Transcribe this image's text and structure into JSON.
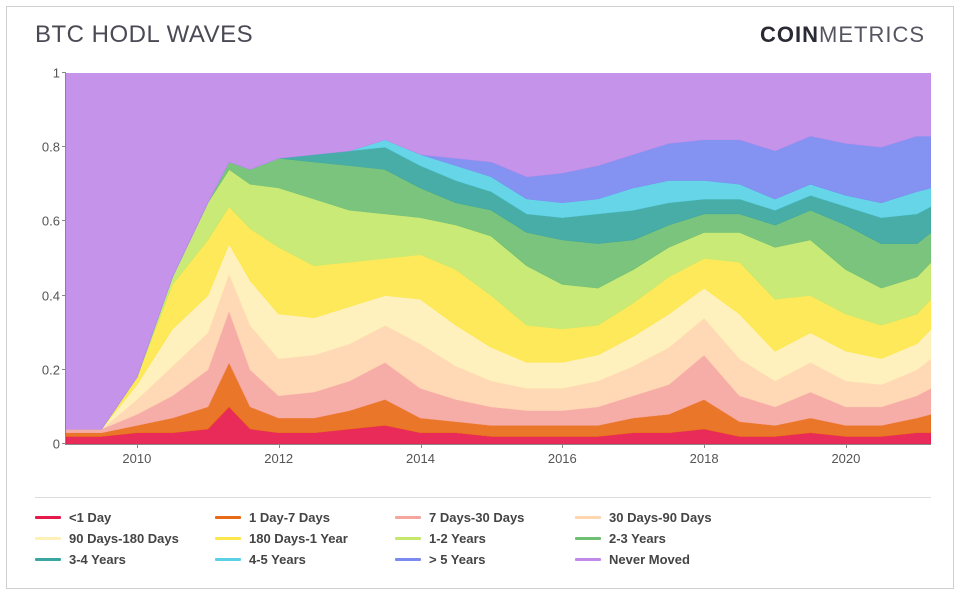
{
  "title": "BTC HODL WAVES",
  "brand_bold": "COIN",
  "brand_thin": "METRICS",
  "chart": {
    "type": "stacked-area",
    "background_color": "#ffffff",
    "axis_color": "#888888",
    "label_color": "#555555",
    "label_fontsize": 13,
    "ylim": [
      0,
      1
    ],
    "yticks": [
      0,
      0.2,
      0.4,
      0.6,
      0.8,
      1
    ],
    "xlim": [
      2009,
      2021.2
    ],
    "xticks": [
      2010,
      2012,
      2014,
      2016,
      2018,
      2020
    ],
    "x_samples": [
      2009.0,
      2009.5,
      2010.0,
      2010.5,
      2011.0,
      2011.3,
      2011.6,
      2012.0,
      2012.5,
      2013.0,
      2013.5,
      2014.0,
      2014.5,
      2015.0,
      2015.5,
      2016.0,
      2016.5,
      2017.0,
      2017.5,
      2018.0,
      2018.5,
      2019.0,
      2019.5,
      2020.0,
      2020.5,
      2021.0,
      2021.2
    ],
    "series": [
      {
        "id": "lt1d",
        "label": "<1 Day",
        "color": "#e6194b",
        "values": [
          0.02,
          0.02,
          0.03,
          0.03,
          0.04,
          0.1,
          0.04,
          0.03,
          0.03,
          0.04,
          0.05,
          0.03,
          0.03,
          0.02,
          0.02,
          0.02,
          0.02,
          0.03,
          0.03,
          0.04,
          0.02,
          0.02,
          0.03,
          0.02,
          0.02,
          0.03,
          0.03
        ]
      },
      {
        "id": "d1_7",
        "label": "1 Day-7 Days",
        "color": "#e86a17",
        "values": [
          0.01,
          0.01,
          0.02,
          0.04,
          0.06,
          0.12,
          0.06,
          0.04,
          0.04,
          0.05,
          0.07,
          0.04,
          0.03,
          0.03,
          0.03,
          0.03,
          0.03,
          0.04,
          0.05,
          0.08,
          0.04,
          0.03,
          0.04,
          0.03,
          0.03,
          0.04,
          0.05
        ]
      },
      {
        "id": "d7_30",
        "label": "7 Days-30 Days",
        "color": "#f6a6a0",
        "values": [
          0.01,
          0.01,
          0.03,
          0.06,
          0.1,
          0.14,
          0.1,
          0.06,
          0.07,
          0.08,
          0.1,
          0.08,
          0.06,
          0.05,
          0.04,
          0.04,
          0.05,
          0.06,
          0.08,
          0.12,
          0.07,
          0.05,
          0.07,
          0.05,
          0.05,
          0.06,
          0.07
        ]
      },
      {
        "id": "d30_90",
        "label": "30 Days-90 Days",
        "color": "#ffd6b0",
        "values": [
          0.0,
          0.0,
          0.04,
          0.08,
          0.1,
          0.1,
          0.12,
          0.1,
          0.1,
          0.1,
          0.1,
          0.12,
          0.09,
          0.07,
          0.06,
          0.06,
          0.07,
          0.08,
          0.1,
          0.1,
          0.1,
          0.07,
          0.08,
          0.07,
          0.06,
          0.07,
          0.08
        ]
      },
      {
        "id": "d90_180",
        "label": "90 Days-180 Days",
        "color": "#fff0b7",
        "values": [
          0.0,
          0.0,
          0.04,
          0.1,
          0.1,
          0.08,
          0.12,
          0.12,
          0.1,
          0.1,
          0.08,
          0.12,
          0.11,
          0.09,
          0.07,
          0.07,
          0.07,
          0.08,
          0.09,
          0.08,
          0.12,
          0.08,
          0.08,
          0.08,
          0.07,
          0.07,
          0.08
        ]
      },
      {
        "id": "d180_1y",
        "label": "180 Days-1 Year",
        "color": "#fde74c",
        "values": [
          0.0,
          0.0,
          0.02,
          0.12,
          0.15,
          0.1,
          0.14,
          0.18,
          0.14,
          0.12,
          0.1,
          0.12,
          0.15,
          0.14,
          0.1,
          0.09,
          0.08,
          0.09,
          0.1,
          0.08,
          0.14,
          0.14,
          0.1,
          0.1,
          0.09,
          0.08,
          0.08
        ]
      },
      {
        "id": "y1_2",
        "label": "1-2 Years",
        "color": "#c5e86c",
        "values": [
          0.0,
          0.0,
          0.0,
          0.02,
          0.1,
          0.1,
          0.12,
          0.16,
          0.18,
          0.14,
          0.12,
          0.1,
          0.12,
          0.16,
          0.16,
          0.12,
          0.1,
          0.09,
          0.08,
          0.07,
          0.08,
          0.14,
          0.15,
          0.12,
          0.1,
          0.1,
          0.1
        ]
      },
      {
        "id": "y2_3",
        "label": "2-3 Years",
        "color": "#6fbf73",
        "values": [
          0.0,
          0.0,
          0.0,
          0.0,
          0.0,
          0.02,
          0.04,
          0.08,
          0.1,
          0.12,
          0.12,
          0.08,
          0.06,
          0.07,
          0.09,
          0.12,
          0.12,
          0.08,
          0.06,
          0.05,
          0.05,
          0.06,
          0.08,
          0.12,
          0.12,
          0.09,
          0.08
        ]
      },
      {
        "id": "y3_4",
        "label": "3-4 Years",
        "color": "#3aa6a0",
        "values": [
          0.0,
          0.0,
          0.0,
          0.0,
          0.0,
          0.0,
          0.0,
          0.0,
          0.02,
          0.04,
          0.06,
          0.06,
          0.06,
          0.05,
          0.05,
          0.06,
          0.08,
          0.08,
          0.06,
          0.04,
          0.04,
          0.04,
          0.04,
          0.05,
          0.07,
          0.08,
          0.07
        ]
      },
      {
        "id": "y4_5",
        "label": "4-5 Years",
        "color": "#5ad1e6",
        "values": [
          0.0,
          0.0,
          0.0,
          0.0,
          0.0,
          0.0,
          0.0,
          0.0,
          0.0,
          0.0,
          0.02,
          0.03,
          0.04,
          0.04,
          0.04,
          0.04,
          0.04,
          0.06,
          0.06,
          0.05,
          0.04,
          0.03,
          0.03,
          0.03,
          0.04,
          0.06,
          0.05
        ]
      },
      {
        "id": "gt5y",
        "label": "> 5 Years",
        "color": "#7a8af0",
        "values": [
          0.0,
          0.0,
          0.0,
          0.0,
          0.0,
          0.0,
          0.0,
          0.0,
          0.0,
          0.0,
          0.0,
          0.0,
          0.02,
          0.04,
          0.06,
          0.08,
          0.09,
          0.09,
          0.1,
          0.11,
          0.12,
          0.13,
          0.13,
          0.14,
          0.15,
          0.15,
          0.14
        ]
      },
      {
        "id": "never",
        "label": "Never Moved",
        "color": "#c18ae8",
        "values": [
          0.96,
          0.96,
          0.82,
          0.55,
          0.35,
          0.24,
          0.26,
          0.23,
          0.22,
          0.21,
          0.18,
          0.22,
          0.23,
          0.24,
          0.28,
          0.27,
          0.25,
          0.22,
          0.19,
          0.18,
          0.18,
          0.21,
          0.17,
          0.19,
          0.2,
          0.17,
          0.17
        ]
      }
    ]
  },
  "legend": {
    "divider_color": "#dcdcdc",
    "item_fontsize": 13,
    "item_fontweight": 600,
    "text_color": "#444444",
    "swatch_width": 26,
    "swatch_height": 3
  }
}
